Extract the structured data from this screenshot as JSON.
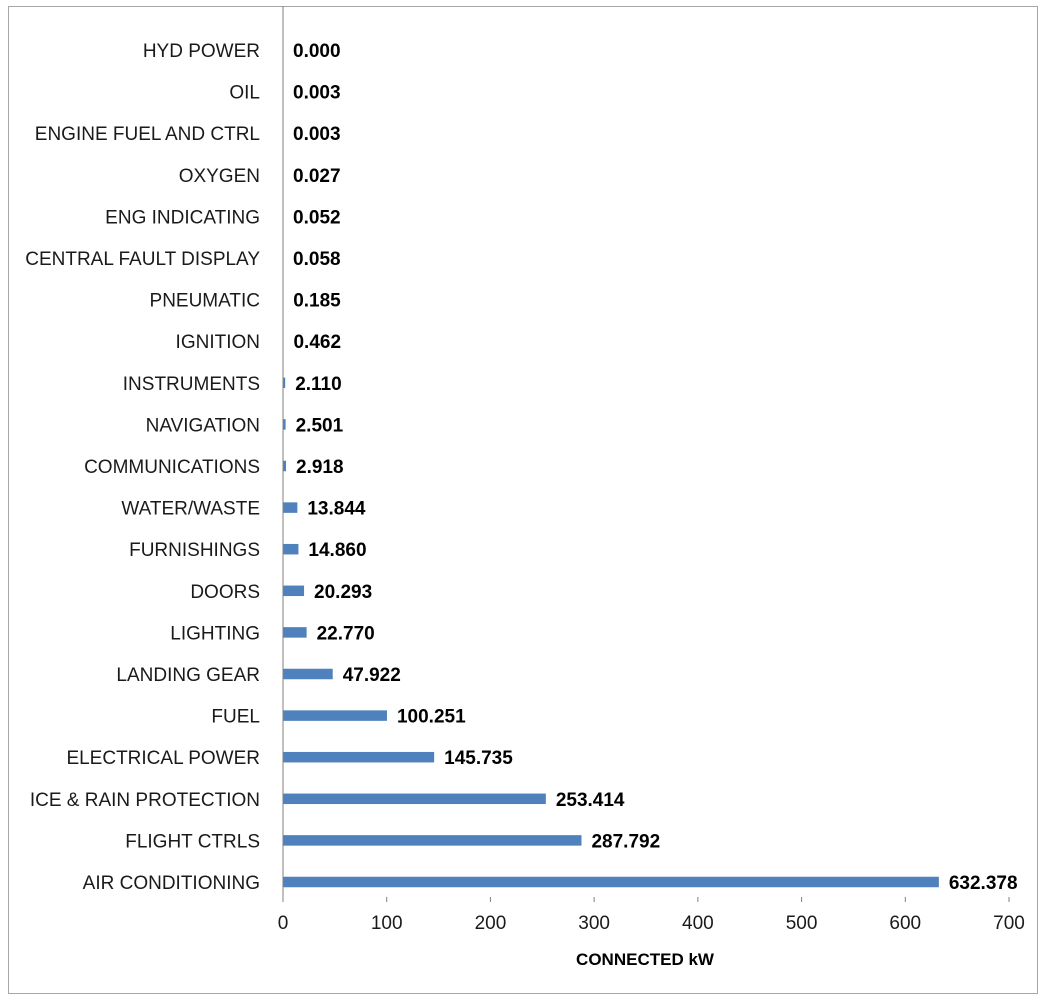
{
  "chart_data": {
    "type": "bar",
    "orientation": "horizontal",
    "categories": [
      "HYD POWER",
      "OIL",
      "ENGINE FUEL AND CTRL",
      "OXYGEN",
      "ENG INDICATING",
      "CENTRAL FAULT DISPLAY",
      "PNEUMATIC",
      "IGNITION",
      "INSTRUMENTS",
      "NAVIGATION",
      "COMMUNICATIONS",
      "WATER/WASTE",
      "FURNISHINGS",
      "DOORS",
      "LIGHTING",
      "LANDING GEAR",
      "FUEL",
      "ELECTRICAL POWER",
      "ICE & RAIN PROTECTION",
      "FLIGHT CTRLS",
      "AIR CONDITIONING"
    ],
    "values": [
      0.0,
      0.003,
      0.003,
      0.027,
      0.052,
      0.058,
      0.185,
      0.462,
      2.11,
      2.501,
      2.918,
      13.844,
      14.86,
      20.293,
      22.77,
      47.922,
      100.251,
      145.735,
      253.414,
      287.792,
      632.378
    ],
    "value_labels": [
      "0.000",
      "0.003",
      "0.003",
      "0.027",
      "0.052",
      "0.058",
      "0.185",
      "0.462",
      "2.110",
      "2.501",
      "2.918",
      "13.844",
      "14.860",
      "20.293",
      "22.770",
      "47.922",
      "100.251",
      "145.735",
      "253.414",
      "287.792",
      "632.378"
    ],
    "xlabel": "CONNECTED kW",
    "xlim": [
      0,
      700
    ],
    "xticks": [
      0,
      100,
      200,
      300,
      400,
      500,
      600,
      700
    ],
    "xtick_labels": [
      "0",
      "100",
      "200",
      "300",
      "400",
      "500",
      "600",
      "700"
    ],
    "grid": false,
    "bar_color": "#4f81bd"
  }
}
